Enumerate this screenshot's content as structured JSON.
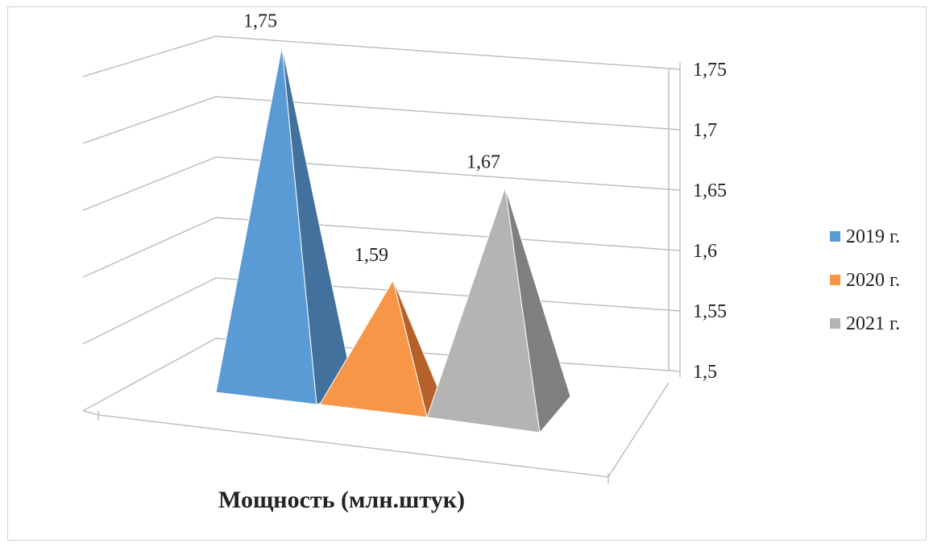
{
  "chart_data": {
    "type": "bar",
    "style": "3d-pyramid",
    "title": "Мощность (млн.штук)",
    "categories": [
      "2019 г.",
      "2020 г.",
      "2021 г."
    ],
    "series": [
      {
        "name": "2019 г.",
        "value": 1.75,
        "label": "1,75",
        "color": "#5B9BD5",
        "shade": "#41719C"
      },
      {
        "name": "2020 г.",
        "value": 1.59,
        "label": "1,59",
        "color": "#F79646",
        "shade": "#B7612A"
      },
      {
        "name": "2021 г.",
        "value": 1.67,
        "label": "1,67",
        "color": "#B4B4B4",
        "shade": "#7F7F7F"
      }
    ],
    "ylim": [
      1.5,
      1.75
    ],
    "yticks": [
      {
        "value": 1.5,
        "label": "1,5"
      },
      {
        "value": 1.55,
        "label": "1,55"
      },
      {
        "value": 1.6,
        "label": "1,6"
      },
      {
        "value": 1.65,
        "label": "1,65"
      },
      {
        "value": 1.7,
        "label": "1,7"
      },
      {
        "value": 1.75,
        "label": "1,75"
      }
    ],
    "grid": true,
    "legend_position": "right"
  }
}
